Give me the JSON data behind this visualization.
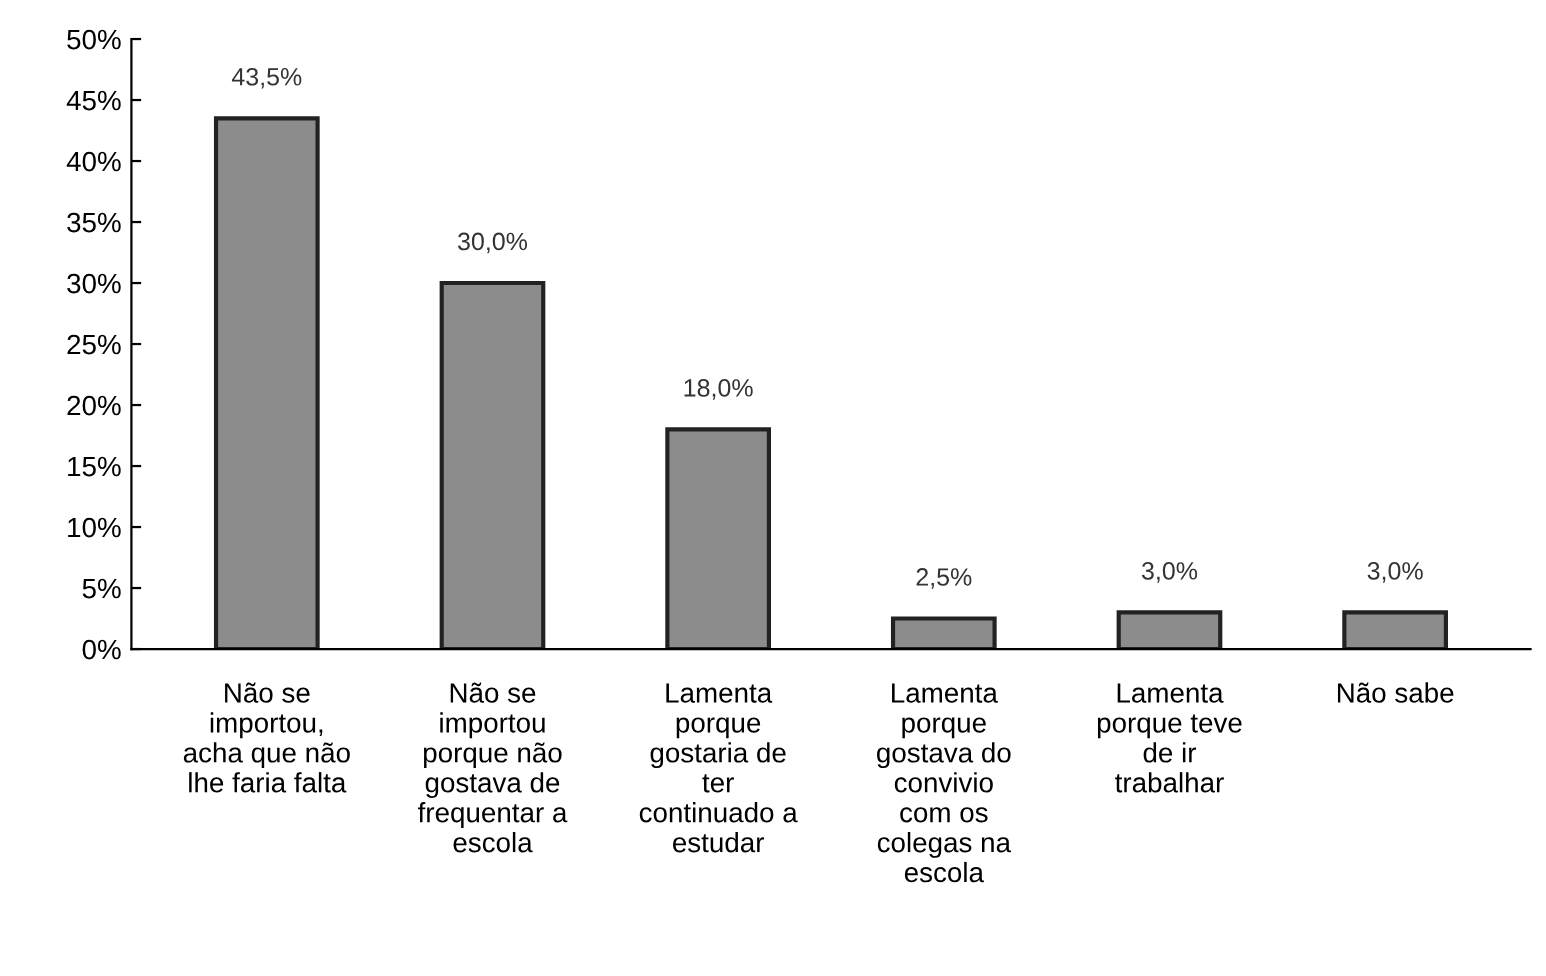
{
  "chart_data": {
    "type": "bar",
    "categories": [
      "Não se\nimportou,\nacha que não\nlhe faria falta",
      "Não se\nimportou\nporque não\ngostava de\nfrequentar a\nescola",
      "Lamenta\nporque\ngostaria de\nter\ncontinuado a\nestudar",
      "Lamenta\nporque\ngostava do\nconvivio\ncom os\ncolegas na\nescola",
      "Lamenta\nporque teve\nde ir\ntrabalhar",
      "Não sabe"
    ],
    "values": [
      43.5,
      30.0,
      18.0,
      2.5,
      3.0,
      3.0
    ],
    "value_labels": [
      "43,5%",
      "30,0%",
      "18,0%",
      "2,5%",
      "3,0%",
      "3,0%"
    ],
    "color": "#8c8c8c",
    "ylim": [
      0,
      50
    ],
    "yticks": [
      {
        "value": 0,
        "label": "0%"
      },
      {
        "value": 5,
        "label": "5%"
      },
      {
        "value": 10,
        "label": "10%"
      },
      {
        "value": 15,
        "label": "15%"
      },
      {
        "value": 20,
        "label": "20%"
      },
      {
        "value": 25,
        "label": "25%"
      },
      {
        "value": 30,
        "label": "30%"
      },
      {
        "value": 35,
        "label": "35%"
      },
      {
        "value": 40,
        "label": "40%"
      },
      {
        "value": 45,
        "label": "45%"
      },
      {
        "value": 50,
        "label": "50%"
      }
    ],
    "grid": false
  }
}
